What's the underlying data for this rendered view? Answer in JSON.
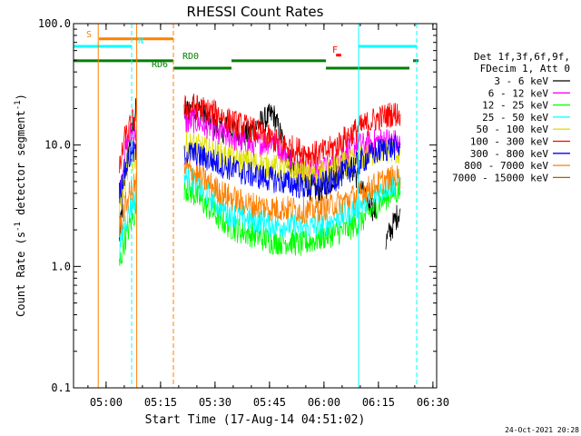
{
  "chart_data": {
    "type": "line",
    "title": "RHESSI Count Rates",
    "xlabel": "Start Time (17-Aug-14 04:51:02)",
    "ylabel": "Count Rate (s⁻¹ detector segment⁻¹)",
    "ylabel_parts": {
      "main": "Count Rate (s",
      "sup1": "-1",
      "mid": " detector segment",
      "sup2": "-1",
      "end": ")"
    },
    "y_scale": "log",
    "ylim": [
      0.1,
      100
    ],
    "xlim_minutes": [
      0,
      100
    ],
    "x_ticks": [
      {
        "label": "05:00",
        "min": 8.97
      },
      {
        "label": "05:15",
        "min": 23.97
      },
      {
        "label": "05:30",
        "min": 38.97
      },
      {
        "label": "05:45",
        "min": 53.97
      },
      {
        "label": "06:00",
        "min": 68.97
      },
      {
        "label": "06:15",
        "min": 83.97
      },
      {
        "label": "06:30",
        "min": 98.97
      }
    ],
    "y_ticks": [
      {
        "label": "0.1",
        "value": 0.1
      },
      {
        "label": "1.0",
        "value": 1
      },
      {
        "label": "10.0",
        "value": 10
      },
      {
        "label": "100.0",
        "value": 100
      }
    ],
    "legend_header": [
      "Det 1f,3f,6f,9f,",
      "FDecim 1, Att 0"
    ],
    "legend_placement": "right",
    "series": [
      {
        "name": "3 - 6 keV",
        "color": "#000000",
        "segments": [
          {
            "x": [
              12.6,
              14.0,
              15.5,
              17.4
            ],
            "y": [
              1.6,
              5.0,
              10.5,
              21
            ]
          },
          {
            "x": [
              30.5,
              33,
              35,
              37.5,
              40,
              42.5,
              45,
              47.5,
              50,
              52.5,
              55,
              57.5,
              60,
              62.5,
              65,
              67.5,
              70,
              72.5,
              75,
              77.5,
              80,
              82.5,
              83.5
            ],
            "y": [
              19,
              20,
              19,
              16,
              13,
              14,
              13,
              12,
              14,
              16,
              18,
              11,
              7,
              5.5,
              4.5,
              4.2,
              4.6,
              6.0,
              7.0,
              6.0,
              3.8,
              3.0,
              2.8
            ]
          },
          {
            "x": [
              86,
              88,
              90
            ],
            "y": [
              1.6,
              2.2,
              3.0
            ]
          }
        ]
      },
      {
        "name": "6 - 12 keV",
        "color": "#ff00ff",
        "segments": [
          {
            "x": [
              12.6,
              14.0,
              15.5,
              17.4
            ],
            "y": [
              3.5,
              8,
              12,
              13
            ]
          },
          {
            "x": [
              30.5,
              33,
              35,
              37.5,
              40,
              42.5,
              45,
              47.5,
              50,
              52.5,
              55,
              57.5,
              60,
              62.5,
              65,
              67.5,
              70,
              72.5,
              75,
              77.5,
              80,
              82.5,
              85,
              87.5,
              90
            ],
            "y": [
              15,
              16,
              15,
              14,
              12,
              12,
              11,
              10,
              10,
              10.5,
              11,
              9,
              7.5,
              6.5,
              6.2,
              6.2,
              6.5,
              7.5,
              9,
              10,
              10,
              10.5,
              11,
              11,
              10
            ]
          }
        ]
      },
      {
        "name": "12 - 25 keV",
        "color": "#00ff00",
        "segments": [
          {
            "x": [
              12.6,
              14.0,
              15.5,
              17.4
            ],
            "y": [
              1.0,
              1.6,
              2.2,
              3.0
            ]
          },
          {
            "x": [
              30.5,
              33,
              35,
              37.5,
              40,
              42.5,
              45,
              47.5,
              50,
              52.5,
              55,
              57.5,
              60,
              62.5,
              65,
              67.5,
              70,
              72.5,
              75,
              77.5,
              80,
              82.5,
              85,
              87.5,
              90
            ],
            "y": [
              4.5,
              4.0,
              3.5,
              3.0,
              2.5,
              2.2,
              2.0,
              1.9,
              1.8,
              1.7,
              1.6,
              1.6,
              1.6,
              1.5,
              1.6,
              1.7,
              1.8,
              1.9,
              2.0,
              2.2,
              2.5,
              3.0,
              3.5,
              4.0,
              4.2
            ]
          }
        ]
      },
      {
        "name": "25 - 50 keV",
        "color": "#00ffff",
        "segments": [
          {
            "x": [
              12.6,
              14.0,
              15.5,
              17.4
            ],
            "y": [
              1.4,
              2.2,
              3.0,
              3.8
            ]
          },
          {
            "x": [
              30.5,
              33,
              35,
              37.5,
              40,
              42.5,
              45,
              47.5,
              50,
              52.5,
              55,
              57.5,
              60,
              62.5,
              65,
              67.5,
              70,
              72.5,
              75,
              77.5,
              80,
              82.5,
              85,
              87.5,
              90
            ],
            "y": [
              5.5,
              5.0,
              4.3,
              3.8,
              3.2,
              2.8,
              2.6,
              2.5,
              2.4,
              2.3,
              2.2,
              2.2,
              2.2,
              2.1,
              2.1,
              2.2,
              2.3,
              2.5,
              2.7,
              3.0,
              3.4,
              3.8,
              4.3,
              4.8,
              5.0
            ]
          }
        ]
      },
      {
        "name": "50 - 100 keV",
        "color": "#e0e000",
        "segments": [
          {
            "x": [
              12.6,
              14.0,
              15.5,
              17.4
            ],
            "y": [
              3.0,
              5.0,
              7.0,
              8.0
            ]
          },
          {
            "x": [
              30.5,
              33,
              35,
              37.5,
              40,
              42.5,
              45,
              47.5,
              50,
              52.5,
              55,
              57.5,
              60,
              62.5,
              65,
              67.5,
              70,
              72.5,
              75,
              77.5,
              80,
              82.5,
              85,
              87.5,
              90
            ],
            "y": [
              10,
              10,
              9.5,
              9,
              8.5,
              8,
              7.6,
              7.2,
              7,
              6.8,
              6.6,
              6.3,
              6.0,
              5.8,
              5.6,
              5.7,
              6.0,
              6.5,
              7.0,
              7.5,
              8.0,
              8.5,
              9.0,
              9.0,
              8.5
            ]
          }
        ]
      },
      {
        "name": "100 - 300 keV",
        "color": "#ff0000",
        "segments": [
          {
            "x": [
              12.6,
              14.0,
              15.5,
              17.4
            ],
            "y": [
              6.0,
              11,
              14,
              18
            ]
          },
          {
            "x": [
              30.5,
              33,
              35,
              37.5,
              40,
              42.5,
              45,
              47.5,
              50,
              52.5,
              55,
              57.5,
              60,
              62.5,
              65,
              67.5,
              70,
              72.5,
              75,
              77.5,
              80,
              82.5,
              85,
              87.5,
              90
            ],
            "y": [
              20,
              21,
              20,
              19,
              18,
              16,
              15,
              14,
              13,
              12,
              11,
              10,
              9.5,
              9,
              8.5,
              8.5,
              9,
              10,
              11.5,
              13,
              14.5,
              16,
              17,
              18,
              18
            ]
          }
        ]
      },
      {
        "name": "300 - 800 keV",
        "color": "#0000ff",
        "segments": [
          {
            "x": [
              12.6,
              14.0,
              15.5,
              17.4
            ],
            "y": [
              4.0,
              6.0,
              8.0,
              9.0
            ]
          },
          {
            "x": [
              30.5,
              33,
              35,
              37.5,
              40,
              42.5,
              45,
              47.5,
              50,
              52.5,
              55,
              57.5,
              60,
              62.5,
              65,
              67.5,
              70,
              72.5,
              75,
              77.5,
              80,
              82.5,
              85,
              87.5,
              90
            ],
            "y": [
              8.5,
              8.5,
              8.0,
              7.6,
              7.0,
              6.6,
              6.2,
              5.8,
              5.6,
              5.4,
              5.2,
              5.0,
              4.8,
              4.6,
              4.5,
              4.6,
              4.9,
              5.4,
              6.0,
              6.8,
              7.6,
              8.5,
              9.2,
              9.6,
              9.5
            ]
          }
        ]
      },
      {
        "name": "800 - 7000 keV",
        "color": "#ff8000",
        "segments": [
          {
            "x": [
              12.6,
              14.0,
              15.5,
              17.4
            ],
            "y": [
              2.0,
              3.0,
              4.0,
              5.0
            ]
          },
          {
            "x": [
              30.5,
              33,
              35,
              37.5,
              40,
              42.5,
              45,
              47.5,
              50,
              52.5,
              55,
              57.5,
              60,
              62.5,
              65,
              67.5,
              70,
              72.5,
              75,
              77.5,
              80,
              82.5,
              85,
              87.5,
              90
            ],
            "y": [
              6.5,
              6.0,
              5.4,
              4.8,
              4.2,
              3.8,
              3.5,
              3.3,
              3.2,
              3.1,
              3.0,
              3.0,
              3.0,
              2.9,
              2.9,
              3.0,
              3.1,
              3.3,
              3.5,
              3.8,
              4.2,
              4.6,
              5.0,
              5.3,
              5.4
            ]
          }
        ]
      },
      {
        "name": "7000 - 15000 keV",
        "color": "#9c6400",
        "segments": []
      }
    ],
    "flags": {
      "S": {
        "label": "S",
        "color": "#ff8000",
        "bars": [
          {
            "x": [
              7,
              27.5
            ],
            "y": 75
          }
        ]
      },
      "N": {
        "label": "N",
        "color": "#00ffff",
        "bars": [
          {
            "x": [
              0,
              16
            ],
            "y": 65
          },
          {
            "x": [
              78.5,
              94.5
            ],
            "y": 65
          }
        ]
      },
      "F": {
        "label": "F",
        "color": "#ff0000",
        "bars": [
          {
            "x": [
              72.3,
              73.7
            ],
            "y": 55
          }
        ]
      },
      "RD0": {
        "label": "RD0",
        "color": "#008000",
        "bars": [
          {
            "x": [
              0,
              27.5
            ],
            "y": 49.5
          },
          {
            "x": [
              43.5,
              69.5
            ],
            "y": 49.5
          },
          {
            "x": [
              93.5,
              95
            ],
            "y": 49.5
          }
        ]
      },
      "RD6": {
        "label": "RD6",
        "color": "#008000",
        "bars": [
          {
            "x": [
              27.5,
              43.5
            ],
            "y": 43
          },
          {
            "x": [
              69.5,
              92.5
            ],
            "y": 43
          }
        ]
      }
    },
    "vlines": [
      {
        "x": 0,
        "color": "#00ffff",
        "style": "solid"
      },
      {
        "x": 6.8,
        "color": "#ff8000",
        "style": "solid"
      },
      {
        "x": 16,
        "color": "#00ffff",
        "style": "dashed"
      },
      {
        "x": 17.4,
        "color": "#ff8000",
        "style": "solid"
      },
      {
        "x": 27.5,
        "color": "#ff8000",
        "style": "dashed"
      },
      {
        "x": 78.5,
        "color": "#00ffff",
        "style": "solid"
      },
      {
        "x": 94.5,
        "color": "#00ffff",
        "style": "dashed"
      }
    ],
    "grid": false
  },
  "footer": {
    "timestamp": "24-Oct-2021 20:28"
  }
}
